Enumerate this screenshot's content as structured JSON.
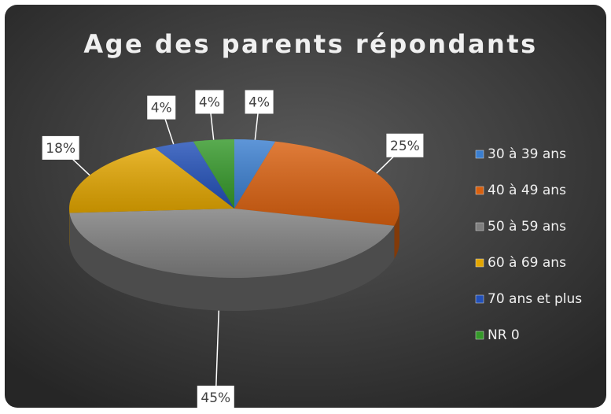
{
  "chart_data": {
    "type": "pie",
    "title": "Age des parents répondants",
    "categories": [
      "30 à 39 ans",
      "40 à 49 ans",
      "50 à 59 ans",
      "60 à 69 ans",
      "70 ans et plus",
      "NR 0"
    ],
    "values": [
      4,
      25,
      45,
      18,
      4,
      4
    ],
    "value_labels": [
      "4%",
      "25%",
      "45%",
      "18%",
      "4%",
      "4%"
    ],
    "colors": [
      "#3b7fd0",
      "#d9600f",
      "#7f7f7f",
      "#e3a600",
      "#2250b8",
      "#35992a"
    ],
    "legend": "right"
  }
}
